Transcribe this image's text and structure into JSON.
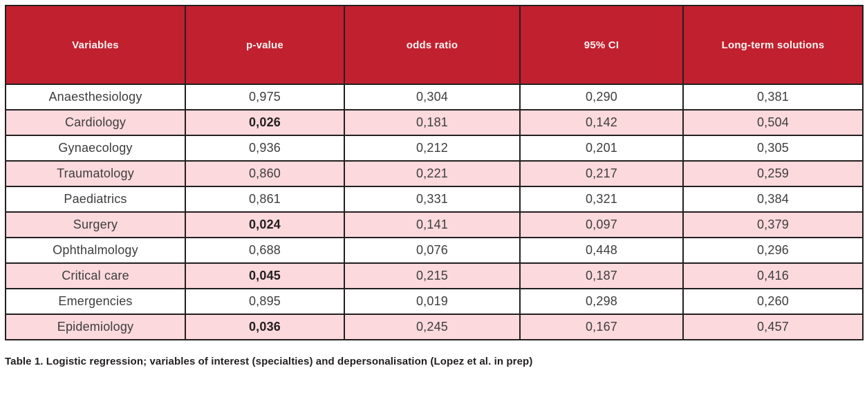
{
  "table": {
    "columns": [
      "Variables",
      "p-value",
      "odds ratio",
      "95% CI",
      "Long-term solutions"
    ],
    "rows": [
      {
        "variable": "Anaesthesiology",
        "p_value": "0,975",
        "odds_ratio": "0,304",
        "ci_95": "0,290",
        "long_term": "0,381",
        "p_significant": false
      },
      {
        "variable": "Cardiology",
        "p_value": "0,026",
        "odds_ratio": "0,181",
        "ci_95": "0,142",
        "long_term": "0,504",
        "p_significant": true
      },
      {
        "variable": "Gynaecology",
        "p_value": "0,936",
        "odds_ratio": "0,212",
        "ci_95": "0,201",
        "long_term": "0,305",
        "p_significant": false
      },
      {
        "variable": "Traumatology",
        "p_value": "0,860",
        "odds_ratio": "0,221",
        "ci_95": "0,217",
        "long_term": "0,259",
        "p_significant": false
      },
      {
        "variable": "Paediatrics",
        "p_value": "0,861",
        "odds_ratio": "0,331",
        "ci_95": "0,321",
        "long_term": "0,384",
        "p_significant": false
      },
      {
        "variable": "Surgery",
        "p_value": "0,024",
        "odds_ratio": "0,141",
        "ci_95": "0,097",
        "long_term": "0,379",
        "p_significant": true
      },
      {
        "variable": "Ophthalmology",
        "p_value": "0,688",
        "odds_ratio": "0,076",
        "ci_95": "0,448",
        "long_term": "0,296",
        "p_significant": false
      },
      {
        "variable": "Critical care",
        "p_value": "0,045",
        "odds_ratio": "0,215",
        "ci_95": "0,187",
        "long_term": "0,416",
        "p_significant": true
      },
      {
        "variable": "Emergencies",
        "p_value": "0,895",
        "odds_ratio": "0,019",
        "ci_95": "0,298",
        "long_term": "0,260",
        "p_significant": false
      },
      {
        "variable": "Epidemiology",
        "p_value": "0,036",
        "odds_ratio": "0,245",
        "ci_95": "0,167",
        "long_term": "0,457",
        "p_significant": true
      }
    ]
  },
  "caption": "Table 1. Logistic regression; variables of interest (specialties) and depersonalisation (Lopez et al. in prep)",
  "colors": {
    "header_bg": "#c1202f",
    "header_text": "#f8f3f1",
    "row_shaded_bg": "#fbd9dd",
    "border": "#231f20",
    "cell_text": "#3d3d3d"
  }
}
